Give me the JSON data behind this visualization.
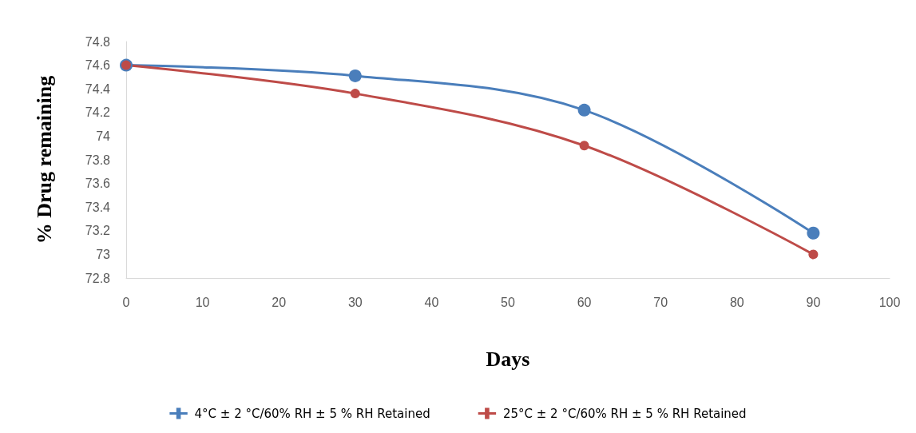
{
  "chart_data": {
    "type": "line",
    "xlabel": "Days",
    "ylabel": "% Drug remaining",
    "x": [
      0,
      30,
      60,
      90
    ],
    "series": [
      {
        "name": "4°C ± 2 °C/60% RH ± 5 % RH Retained",
        "color": "#4a7ebb",
        "values": [
          74.6,
          74.51,
          74.22,
          73.18
        ]
      },
      {
        "name": "25°C ± 2 °C/60% RH ± 5 % RH Retained",
        "color": "#be4b48",
        "values": [
          74.6,
          74.36,
          73.92,
          73.0
        ]
      }
    ],
    "xlim": [
      0,
      100
    ],
    "xticks": [
      0,
      10,
      20,
      30,
      40,
      50,
      60,
      70,
      80,
      90,
      100
    ],
    "ylim": [
      72.8,
      74.8
    ],
    "yticks": [
      72.8,
      73,
      73.2,
      73.4,
      73.6,
      73.8,
      74,
      74.2,
      74.4,
      74.6,
      74.8
    ],
    "grid": false,
    "legend": "bottom",
    "marker": "circle",
    "line_style": "solid"
  }
}
